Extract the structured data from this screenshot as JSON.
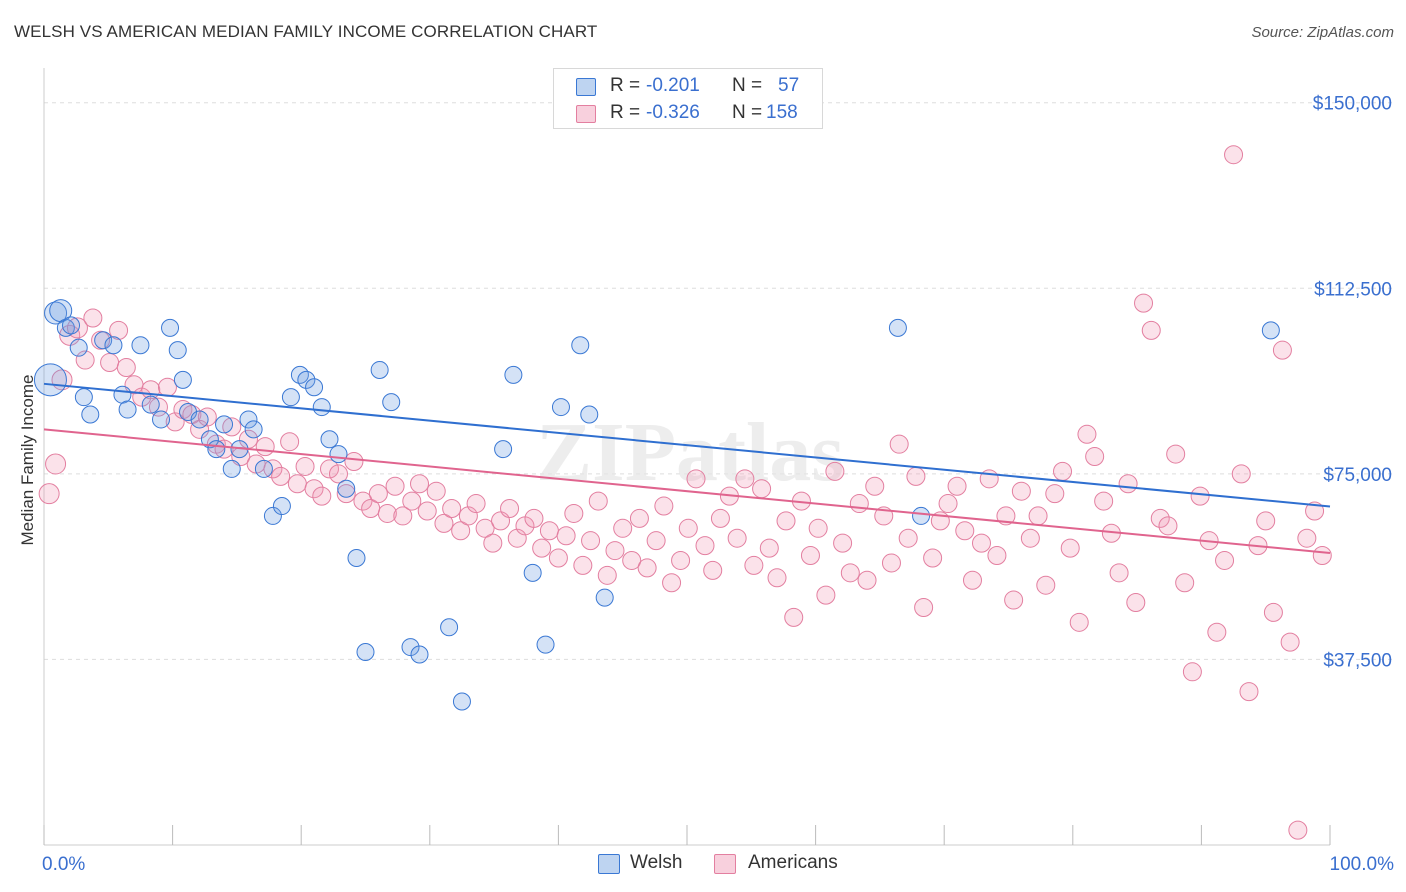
{
  "header": {
    "title": "WELSH VS AMERICAN MEDIAN FAMILY INCOME CORRELATION CHART",
    "source": "Source: ZipAtlas.com"
  },
  "watermark": "ZIPatlas",
  "legend_top": {
    "rows": [
      {
        "r_label": "R =",
        "r_value": "-0.201",
        "n_label": "N =",
        "n_value": "57",
        "color": "#6fa0e0"
      },
      {
        "r_label": "R =",
        "r_value": "-0.326",
        "n_label": "N =",
        "n_value": "158",
        "color": "#e991ad"
      }
    ]
  },
  "legend_bottom": {
    "items": [
      {
        "label": "Welsh",
        "color": "#6fa0e0"
      },
      {
        "label": "Americans",
        "color": "#e991ad"
      }
    ]
  },
  "colors": {
    "welsh_fill": "rgba(111,160,224,0.30)",
    "welsh_stroke": "#3a78d4",
    "welsh_line": "#2f6fd0",
    "americans_fill": "rgba(240,150,180,0.28)",
    "americans_stroke": "#e37fa0",
    "americans_line": "#e0648e",
    "tick_label": "#3a6fcf",
    "grid": "#dddddd"
  },
  "chart_data": {
    "type": "scatter",
    "title": "WELSH VS AMERICAN MEDIAN FAMILY INCOME CORRELATION CHART",
    "xlabel": "",
    "ylabel": "Median Family Income",
    "xlim": [
      0,
      100
    ],
    "ylim": [
      0,
      155000
    ],
    "x_tick_labels": [
      "0.0%",
      "100.0%"
    ],
    "y_ticks": [
      37500,
      75000,
      112500,
      150000
    ],
    "y_tick_labels": [
      "$37,500",
      "$75,000",
      "$112,500",
      "$150,000"
    ],
    "grid": "horizontal dashed",
    "series": [
      {
        "name": "Welsh",
        "trend": {
          "x0": 0,
          "y0": 93200,
          "x1": 100,
          "y1": 68400
        },
        "points": [
          [
            0.5,
            94000
          ],
          [
            0.9,
            107500
          ],
          [
            1.3,
            108000
          ],
          [
            1.7,
            104500
          ],
          [
            2.1,
            105000
          ],
          [
            2.7,
            100500
          ],
          [
            3.1,
            90500
          ],
          [
            3.6,
            87000
          ],
          [
            4.6,
            102000
          ],
          [
            5.4,
            101000
          ],
          [
            6.1,
            91000
          ],
          [
            6.5,
            88000
          ],
          [
            7.5,
            101000
          ],
          [
            8.3,
            89000
          ],
          [
            9.1,
            86000
          ],
          [
            9.8,
            104500
          ],
          [
            10.4,
            100000
          ],
          [
            10.8,
            94000
          ],
          [
            11.2,
            87500
          ],
          [
            12.1,
            86000
          ],
          [
            12.9,
            82000
          ],
          [
            13.4,
            80000
          ],
          [
            14.0,
            85000
          ],
          [
            14.6,
            76000
          ],
          [
            15.2,
            80000
          ],
          [
            15.9,
            86000
          ],
          [
            16.3,
            84000
          ],
          [
            17.1,
            76000
          ],
          [
            17.8,
            66500
          ],
          [
            18.5,
            68500
          ],
          [
            19.2,
            90500
          ],
          [
            19.9,
            95000
          ],
          [
            20.4,
            94000
          ],
          [
            21.0,
            92500
          ],
          [
            21.6,
            88500
          ],
          [
            22.2,
            82000
          ],
          [
            22.9,
            79000
          ],
          [
            23.5,
            72000
          ],
          [
            24.3,
            58000
          ],
          [
            25.0,
            39000
          ],
          [
            26.1,
            96000
          ],
          [
            27.0,
            89500
          ],
          [
            28.5,
            40000
          ],
          [
            29.2,
            38500
          ],
          [
            31.5,
            44000
          ],
          [
            32.5,
            29000
          ],
          [
            35.7,
            80000
          ],
          [
            36.5,
            95000
          ],
          [
            38.0,
            55000
          ],
          [
            39.0,
            40500
          ],
          [
            40.2,
            88500
          ],
          [
            41.7,
            101000
          ],
          [
            42.4,
            87000
          ],
          [
            43.6,
            50000
          ],
          [
            66.4,
            104500
          ],
          [
            68.2,
            66500
          ],
          [
            95.4,
            104000
          ]
        ]
      },
      {
        "name": "Americans",
        "trend": {
          "x0": 0,
          "y0": 84000,
          "x1": 100,
          "y1": 59000
        },
        "points": [
          [
            0.4,
            71000
          ],
          [
            0.9,
            77000
          ],
          [
            1.4,
            94000
          ],
          [
            2.0,
            103000
          ],
          [
            2.6,
            104500
          ],
          [
            3.2,
            98000
          ],
          [
            3.8,
            106500
          ],
          [
            4.4,
            102000
          ],
          [
            5.1,
            97500
          ],
          [
            5.8,
            104000
          ],
          [
            6.4,
            96500
          ],
          [
            7.0,
            93000
          ],
          [
            7.6,
            90500
          ],
          [
            8.3,
            92000
          ],
          [
            8.9,
            88500
          ],
          [
            9.6,
            92500
          ],
          [
            10.2,
            85500
          ],
          [
            10.8,
            88000
          ],
          [
            11.5,
            87000
          ],
          [
            12.1,
            84000
          ],
          [
            12.7,
            86500
          ],
          [
            13.4,
            81000
          ],
          [
            14.0,
            80000
          ],
          [
            14.6,
            84500
          ],
          [
            15.3,
            78500
          ],
          [
            15.9,
            82000
          ],
          [
            16.5,
            77000
          ],
          [
            17.2,
            80500
          ],
          [
            17.8,
            76000
          ],
          [
            18.4,
            74500
          ],
          [
            19.1,
            81500
          ],
          [
            19.7,
            73000
          ],
          [
            20.3,
            76500
          ],
          [
            21.0,
            72000
          ],
          [
            21.6,
            70500
          ],
          [
            22.2,
            76000
          ],
          [
            22.9,
            75000
          ],
          [
            23.5,
            71000
          ],
          [
            24.1,
            77500
          ],
          [
            24.8,
            69500
          ],
          [
            25.4,
            68000
          ],
          [
            26.0,
            71000
          ],
          [
            26.7,
            67000
          ],
          [
            27.3,
            72500
          ],
          [
            27.9,
            66500
          ],
          [
            28.6,
            69500
          ],
          [
            29.2,
            73000
          ],
          [
            29.8,
            67500
          ],
          [
            30.5,
            71500
          ],
          [
            31.1,
            65000
          ],
          [
            31.7,
            68000
          ],
          [
            32.4,
            63500
          ],
          [
            33.0,
            66500
          ],
          [
            33.6,
            69000
          ],
          [
            34.3,
            64000
          ],
          [
            34.9,
            61000
          ],
          [
            35.5,
            65500
          ],
          [
            36.2,
            68000
          ],
          [
            36.8,
            62000
          ],
          [
            37.4,
            64500
          ],
          [
            38.1,
            66000
          ],
          [
            38.7,
            60000
          ],
          [
            39.3,
            63500
          ],
          [
            40.0,
            58000
          ],
          [
            40.6,
            62500
          ],
          [
            41.2,
            67000
          ],
          [
            41.9,
            56500
          ],
          [
            42.5,
            61500
          ],
          [
            43.1,
            69500
          ],
          [
            43.8,
            54500
          ],
          [
            44.4,
            59500
          ],
          [
            45.0,
            64000
          ],
          [
            45.7,
            57500
          ],
          [
            46.3,
            66000
          ],
          [
            46.9,
            56000
          ],
          [
            47.6,
            61500
          ],
          [
            48.2,
            68500
          ],
          [
            48.8,
            53000
          ],
          [
            49.5,
            57500
          ],
          [
            50.1,
            64000
          ],
          [
            50.7,
            74000
          ],
          [
            51.4,
            60500
          ],
          [
            52.0,
            55500
          ],
          [
            52.6,
            66000
          ],
          [
            53.3,
            70500
          ],
          [
            53.9,
            62000
          ],
          [
            54.5,
            74000
          ],
          [
            55.2,
            56500
          ],
          [
            55.8,
            72000
          ],
          [
            56.4,
            60000
          ],
          [
            57.0,
            54000
          ],
          [
            57.7,
            65500
          ],
          [
            58.3,
            46000
          ],
          [
            58.9,
            69500
          ],
          [
            59.6,
            58500
          ],
          [
            60.2,
            64000
          ],
          [
            60.8,
            50500
          ],
          [
            61.5,
            75500
          ],
          [
            62.1,
            61000
          ],
          [
            62.7,
            55000
          ],
          [
            63.4,
            69000
          ],
          [
            64.0,
            53500
          ],
          [
            64.6,
            72500
          ],
          [
            65.3,
            66500
          ],
          [
            65.9,
            57000
          ],
          [
            66.5,
            81000
          ],
          [
            67.2,
            62000
          ],
          [
            67.8,
            74500
          ],
          [
            68.4,
            48000
          ],
          [
            69.1,
            58000
          ],
          [
            69.7,
            65500
          ],
          [
            70.3,
            69000
          ],
          [
            71.0,
            72500
          ],
          [
            71.6,
            63500
          ],
          [
            72.2,
            53500
          ],
          [
            72.9,
            61000
          ],
          [
            73.5,
            74000
          ],
          [
            74.1,
            58500
          ],
          [
            74.8,
            66500
          ],
          [
            75.4,
            49500
          ],
          [
            76.0,
            71500
          ],
          [
            76.7,
            62000
          ],
          [
            77.3,
            66500
          ],
          [
            77.9,
            52500
          ],
          [
            78.6,
            71000
          ],
          [
            79.2,
            75500
          ],
          [
            79.8,
            60000
          ],
          [
            80.5,
            45000
          ],
          [
            81.1,
            83000
          ],
          [
            81.7,
            78500
          ],
          [
            82.4,
            69500
          ],
          [
            83.0,
            63000
          ],
          [
            83.6,
            55000
          ],
          [
            84.3,
            73000
          ],
          [
            84.9,
            49000
          ],
          [
            85.5,
            109500
          ],
          [
            86.1,
            104000
          ],
          [
            86.8,
            66000
          ],
          [
            87.4,
            64500
          ],
          [
            88.0,
            79000
          ],
          [
            88.7,
            53000
          ],
          [
            89.3,
            35000
          ],
          [
            89.9,
            70500
          ],
          [
            90.6,
            61500
          ],
          [
            91.2,
            43000
          ],
          [
            91.8,
            57500
          ],
          [
            92.5,
            139500
          ],
          [
            93.1,
            75000
          ],
          [
            93.7,
            31000
          ],
          [
            94.4,
            60500
          ],
          [
            95.0,
            65500
          ],
          [
            95.6,
            47000
          ],
          [
            96.3,
            100000
          ],
          [
            96.9,
            41000
          ],
          [
            97.5,
            3000
          ],
          [
            98.2,
            62000
          ],
          [
            98.8,
            67500
          ],
          [
            99.4,
            58500
          ]
        ]
      }
    ]
  }
}
